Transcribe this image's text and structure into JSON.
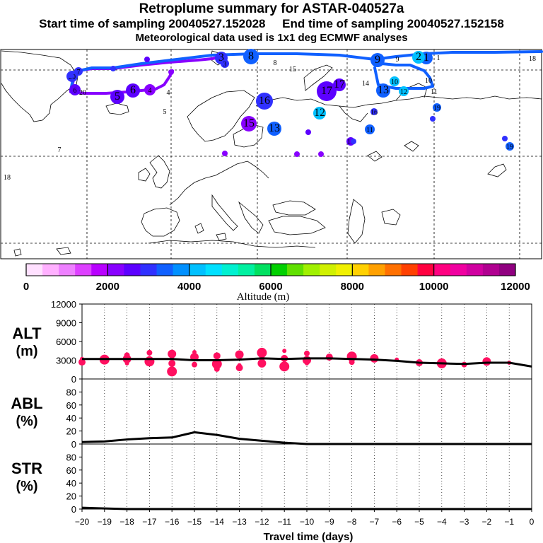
{
  "header": {
    "title": "Retroplume summary for ASTAR-040527a",
    "start_label": "Start time of sampling 20040527.152028",
    "end_label": "End time of sampling 20040527.152158",
    "met_label": "Meteorological data used is 1x1 deg ECMWF analyses"
  },
  "colorbar": {
    "label": "Altitude (m)",
    "ticks": [
      "0",
      "2000",
      "4000",
      "6000",
      "8000",
      "10000",
      "12000"
    ],
    "colors": [
      "#ffe0ff",
      "#ffb0ff",
      "#ee80ff",
      "#dd40ff",
      "#b800ff",
      "#8800ff",
      "#5c00ff",
      "#3030ff",
      "#1060ff",
      "#0090ff",
      "#00c0ff",
      "#00e0ff",
      "#00f0d0",
      "#00f0a0",
      "#00e060",
      "#00d000",
      "#60e000",
      "#a0f000",
      "#d0f000",
      "#f0f000",
      "#ffd000",
      "#ffa000",
      "#ff7000",
      "#ff4000",
      "#ff0040",
      "#ff0080",
      "#f000a0",
      "#d000a0",
      "#b00090",
      "#900080"
    ]
  },
  "chart_data": [
    {
      "type": "map",
      "description_free": true,
      "trajectory_labels": [
        "1",
        "2",
        "3",
        "4",
        "5",
        "6",
        "7",
        "8",
        "9",
        "10",
        "11",
        "12",
        "13",
        "14",
        "15",
        "16",
        "17",
        "18",
        "19",
        "20"
      ],
      "points": [
        {
          "day": "1",
          "color": "#1060ff"
        },
        {
          "day": "2",
          "color": "#00c0ff"
        },
        {
          "day": "3",
          "color": "#3030ff"
        },
        {
          "day": "4",
          "color": "#8800ff"
        },
        {
          "day": "5",
          "color": "#5c00ff"
        },
        {
          "day": "6",
          "color": "#5c00ff"
        },
        {
          "day": "7",
          "color": "#3030ff"
        },
        {
          "day": "8",
          "color": "#1060ff"
        },
        {
          "day": "9",
          "color": "#1060ff"
        },
        {
          "day": "10",
          "color": "#00c0ff"
        },
        {
          "day": "11",
          "color": "#1060ff"
        },
        {
          "day": "12",
          "color": "#00c0ff"
        },
        {
          "day": "13",
          "color": "#1060ff"
        },
        {
          "day": "14",
          "color": "#5c00ff"
        },
        {
          "day": "15",
          "color": "#8800ff"
        },
        {
          "day": "16",
          "color": "#3030ff"
        },
        {
          "day": "17",
          "color": "#5c00ff"
        },
        {
          "day": "18",
          "color": "#3030ff"
        },
        {
          "day": "19",
          "color": "#1060ff"
        },
        {
          "day": "20",
          "color": "#3030ff"
        }
      ]
    },
    {
      "type": "line",
      "panel": "ALT",
      "ylabel": [
        "ALT",
        "(m)"
      ],
      "ylim": [
        0,
        12000
      ],
      "yticks": [
        "0",
        "3000",
        "6000",
        "9000",
        "12000"
      ],
      "x": [
        -20,
        -19,
        -18,
        -17,
        -16,
        -15,
        -14,
        -13,
        -12,
        -11,
        -10,
        -9,
        -8,
        -7,
        -6,
        -5,
        -4,
        -3,
        -2,
        -1,
        0
      ],
      "values": [
        3200,
        3200,
        3200,
        3200,
        3200,
        3000,
        3000,
        3100,
        3300,
        3200,
        3300,
        3300,
        3200,
        3100,
        2900,
        2600,
        2500,
        2400,
        2600,
        2600,
        2000
      ],
      "scatter": [
        {
          "x": -20,
          "y": 3200
        },
        {
          "x": -20,
          "y": 2700
        },
        {
          "x": -19,
          "y": 3100
        },
        {
          "x": -18,
          "y": 3800
        },
        {
          "x": -18,
          "y": 3200
        },
        {
          "x": -18,
          "y": 2500
        },
        {
          "x": -17,
          "y": 3100
        },
        {
          "x": -17,
          "y": 2800
        },
        {
          "x": -17,
          "y": 4200
        },
        {
          "x": -16,
          "y": 4000
        },
        {
          "x": -16,
          "y": 3400
        },
        {
          "x": -16,
          "y": 2500
        },
        {
          "x": -16,
          "y": 1200
        },
        {
          "x": -15,
          "y": 2300
        },
        {
          "x": -15,
          "y": 3500
        },
        {
          "x": -15,
          "y": 4300
        },
        {
          "x": -14,
          "y": 3700
        },
        {
          "x": -14,
          "y": 2400
        },
        {
          "x": -14,
          "y": 1600
        },
        {
          "x": -13,
          "y": 3900
        },
        {
          "x": -13,
          "y": 2200
        },
        {
          "x": -13,
          "y": 1800
        },
        {
          "x": -12,
          "y": 4200
        },
        {
          "x": -12,
          "y": 3300
        },
        {
          "x": -12,
          "y": 2500
        },
        {
          "x": -11,
          "y": 4500
        },
        {
          "x": -11,
          "y": 3300
        },
        {
          "x": -11,
          "y": 2000
        },
        {
          "x": -10,
          "y": 4100
        },
        {
          "x": -10,
          "y": 3000
        },
        {
          "x": -10,
          "y": 2500
        },
        {
          "x": -9,
          "y": 3500
        },
        {
          "x": -8,
          "y": 3600
        },
        {
          "x": -8,
          "y": 2700
        },
        {
          "x": -7,
          "y": 3300
        },
        {
          "x": -6,
          "y": 3100
        },
        {
          "x": -5,
          "y": 2600
        },
        {
          "x": -4,
          "y": 2500
        },
        {
          "x": -3,
          "y": 2300
        },
        {
          "x": -2,
          "y": 2800
        },
        {
          "x": -1,
          "y": 2600
        }
      ],
      "scatter_color": "#ff1060"
    },
    {
      "type": "line",
      "panel": "ABL",
      "ylabel": [
        "ABL",
        "(%)"
      ],
      "ylim": [
        0,
        100
      ],
      "yticks": [
        "0",
        "20",
        "40",
        "60",
        "80"
      ],
      "x": [
        -20,
        -19,
        -18,
        -17,
        -16,
        -15,
        -14,
        -13,
        -12,
        -11,
        -10,
        -9,
        -8,
        -7,
        -6,
        -5,
        -4,
        -3,
        -2,
        -1,
        0
      ],
      "values": [
        3,
        4,
        7,
        9,
        10,
        18,
        14,
        8,
        5,
        2,
        0,
        0,
        0,
        0,
        0,
        0,
        0,
        0,
        0,
        0,
        0
      ]
    },
    {
      "type": "line",
      "panel": "STR",
      "ylabel": [
        "STR",
        "(%)"
      ],
      "ylim": [
        0,
        100
      ],
      "yticks": [
        "0",
        "20",
        "40",
        "60",
        "80"
      ],
      "x": [
        -20,
        -19,
        -18,
        -17,
        -16,
        -15,
        -14,
        -13,
        -12,
        -11,
        -10,
        -9,
        -8,
        -7,
        -6,
        -5,
        -4,
        -3,
        -2,
        -1,
        0
      ],
      "values": [
        2,
        1,
        0,
        0,
        0,
        0,
        0,
        0,
        0,
        0,
        0,
        0,
        0,
        0,
        0,
        0,
        0,
        0,
        0,
        0,
        0
      ],
      "xlabel": "Travel time (days)",
      "xticks": [
        "−20",
        "−19",
        "−18",
        "−17",
        "−16",
        "−15",
        "−14",
        "−13",
        "−12",
        "−11",
        "−10",
        "−9",
        "−8",
        "−7",
        "−6",
        "−5",
        "−4",
        "−3",
        "−2",
        "−1",
        "0"
      ]
    }
  ]
}
